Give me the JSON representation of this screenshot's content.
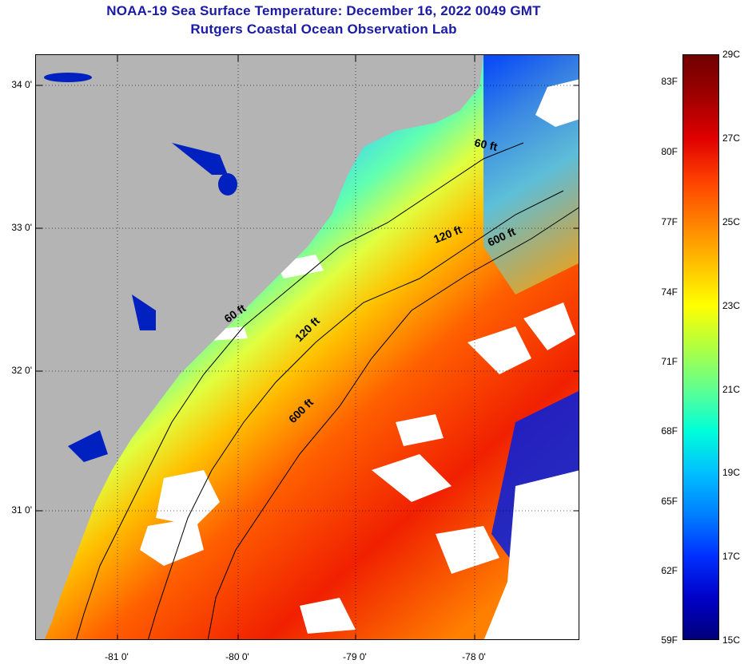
{
  "title": {
    "line1": "NOAA-19 Sea Surface Temperature:  December 16, 2022 0049 GMT",
    "line2": "Rutgers Coastal Ocean Observation Lab"
  },
  "map": {
    "lat_labels": [
      "34 0'",
      "33 0'",
      "32 0'",
      "31 0'"
    ],
    "lon_labels": [
      "-81 0'",
      "-80 0'",
      "-79 0'",
      "-78 0'"
    ],
    "contour_labels": [
      "60 ft",
      "120 ft",
      "600 ft",
      "60 ft",
      "120 ft",
      "600 ft"
    ],
    "colors": {
      "land": "#b4b4b4",
      "cloud": "#ffffff",
      "contour": "#000000"
    }
  },
  "colorbar": {
    "fahrenheit_labels": [
      "83F",
      "80F",
      "77F",
      "74F",
      "71F",
      "68F",
      "65F",
      "62F",
      "59F"
    ],
    "celsius_labels": [
      "29C",
      "27C",
      "25C",
      "23C",
      "21C",
      "19C",
      "17C",
      "15C"
    ],
    "range_c": [
      15,
      29
    ],
    "colors": [
      "#00007a",
      "#0000c8",
      "#0030ff",
      "#0080ff",
      "#00c0ff",
      "#00ffd8",
      "#60ff90",
      "#b0ff40",
      "#ffff00",
      "#ffc000",
      "#ff8000",
      "#ff4000",
      "#e00000",
      "#a00000",
      "#700000"
    ]
  }
}
